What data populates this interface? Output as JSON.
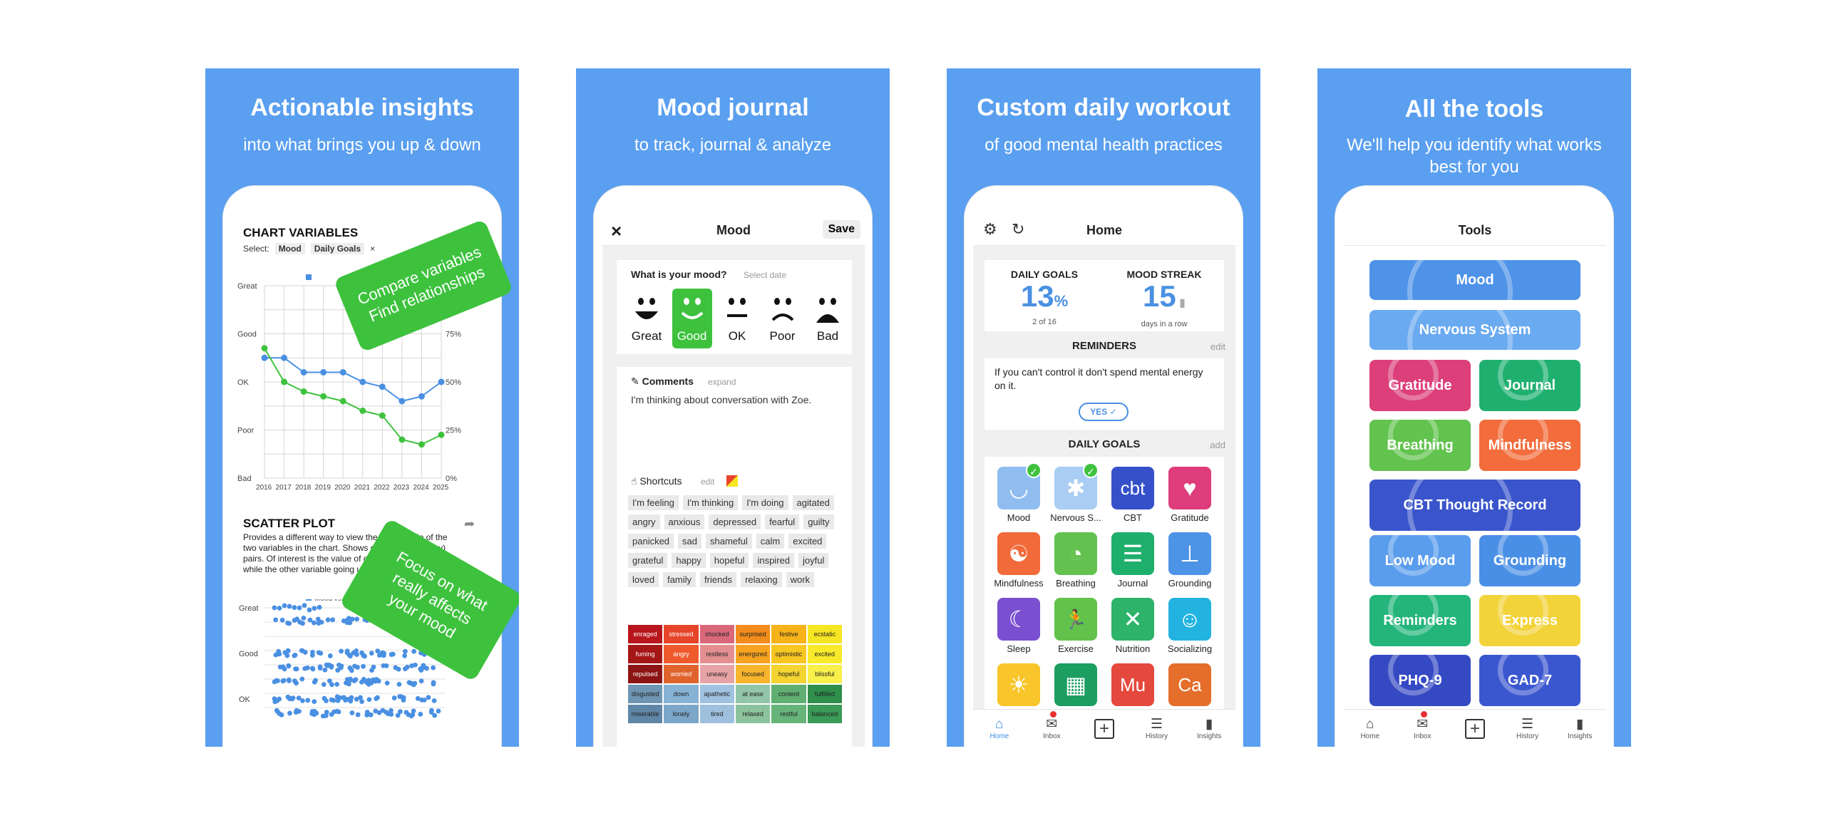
{
  "panels": [
    {
      "title": "Actionable insights",
      "subtitle": "into what brings you up & down"
    },
    {
      "title": "Mood journal",
      "subtitle": "to track, journal & analyze"
    },
    {
      "title": "Custom daily workout",
      "subtitle": "of good mental health practices"
    },
    {
      "title": "All the tools",
      "subtitle": "We'll help you identify what works best for you"
    }
  ],
  "insights": {
    "chart_title": "CHART VARIABLES",
    "select_label": "Select:",
    "chips": [
      "Mood",
      "Daily Goals"
    ],
    "chip_close": "×",
    "overlay1": "Compare variables\nFind relationships",
    "overlay2": "Focus on what\nreally affects\nyour mood",
    "scatter_title": "SCATTER PLOT",
    "scatter_desc": "Provides a different way to view the relationship of the two variables in the chart. Shows data plotted as (x,y) pairs. Of interest is the value of one variable going up while the other variable going up or down.",
    "scatter_legend": "Mood vs. Daily Goals",
    "scatter_y": [
      "Great",
      "Good",
      "OK"
    ]
  },
  "chart_data": {
    "type": "line",
    "title": "CHART VARIABLES",
    "x": [
      "2016",
      "2017",
      "2018",
      "2019",
      "2020",
      "2021",
      "2022",
      "2023",
      "2024",
      "2025"
    ],
    "y_left_ticks": [
      "Great",
      "Good",
      "OK",
      "Poor",
      "Bad"
    ],
    "y_right_ticks": [
      "75%",
      "50%",
      "25%",
      "0%"
    ],
    "series": [
      {
        "name": "Mood",
        "color": "#4a90e2",
        "values": [
          2.5,
          2.5,
          2.2,
          2.2,
          2.2,
          2.0,
          1.9,
          1.6,
          1.7,
          2.0
        ]
      },
      {
        "name": "Daily Goals",
        "color": "#3ec23e",
        "values": [
          2.7,
          2.0,
          1.8,
          1.7,
          1.6,
          1.4,
          1.3,
          0.8,
          0.7,
          0.9
        ]
      }
    ],
    "ylim": [
      0,
      4
    ]
  },
  "journal": {
    "close_icon": "×",
    "title": "Mood",
    "save": "Save",
    "question": "What is your mood?",
    "select_date": "Select date",
    "moods": [
      {
        "label": "Great",
        "face": "great"
      },
      {
        "label": "Good",
        "face": "good"
      },
      {
        "label": "OK",
        "face": "ok"
      },
      {
        "label": "Poor",
        "face": "poor"
      },
      {
        "label": "Bad",
        "face": "bad"
      }
    ],
    "comments_label": "Comments",
    "expand": "expand",
    "comment_text": "I'm thinking about conversation with Zoe.",
    "shortcuts_label": "Shortcuts",
    "edit": "edit",
    "tags": [
      "I'm feeling",
      "I'm thinking",
      "I'm doing",
      "agitated",
      "angry",
      "anxious",
      "depressed",
      "fearful",
      "guilty",
      "panicked",
      "sad",
      "shameful",
      "calm",
      "excited",
      "grateful",
      "happy",
      "hopeful",
      "inspired",
      "joyful",
      "loved",
      "family",
      "friends",
      "relaxing",
      "work"
    ],
    "grid": [
      [
        "enraged",
        "stressed",
        "shocked",
        "surprised",
        "festive",
        "ecstatic"
      ],
      [
        "fuming",
        "angry",
        "restless",
        "energized",
        "optimistic",
        "excited"
      ],
      [
        "repulsed",
        "worried",
        "uneasy",
        "focused",
        "hopeful",
        "blissful"
      ],
      [
        "disgusted",
        "down",
        "apathetic",
        "at ease",
        "content",
        "fulfilled"
      ],
      [
        "miserable",
        "lonely",
        "tired",
        "relaxed",
        "restful",
        "balanced"
      ]
    ],
    "grid_colors": [
      [
        "#b8161c",
        "#e6452a",
        "#d9687a",
        "#f28c1c",
        "#f8b31a",
        "#f6e522"
      ],
      [
        "#a51616",
        "#ef5a2c",
        "#e38f91",
        "#f7a31f",
        "#f8c722",
        "#f8ea2a"
      ],
      [
        "#8c1414",
        "#e0632e",
        "#e6a3a5",
        "#f7b52c",
        "#f4d431",
        "#f8ef49"
      ],
      [
        "#6e95b2",
        "#86b2d4",
        "#9fc2e0",
        "#93c6a8",
        "#5fae72",
        "#2f8f4b"
      ],
      [
        "#5f86a6",
        "#7ba6c8",
        "#9ec0dd",
        "#8cc39c",
        "#67b47a",
        "#3a9a57"
      ]
    ]
  },
  "home": {
    "title": "Home",
    "daily_goals_label": "DAILY GOALS",
    "daily_goals_value": "13",
    "daily_goals_unit": "%",
    "daily_goals_sub": "2 of 16",
    "streak_label": "MOOD STREAK",
    "streak_value": "15",
    "streak_sub": "days in a row",
    "reminders_label": "REMINDERS",
    "reminders_edit": "edit",
    "reminder_text": "If you can't control it don't spend mental energy on it.",
    "yes": "YES",
    "goals_label": "DAILY GOALS",
    "goals_add": "add",
    "goals": [
      {
        "label": "Mood",
        "color": "#8fbdf0",
        "glyph": "◡",
        "checked": true
      },
      {
        "label": "Nervous S...",
        "color": "#a9cdf3",
        "glyph": "✱",
        "checked": true
      },
      {
        "label": "CBT",
        "color": "#3550c9",
        "glyph": "cbt",
        "checked": false
      },
      {
        "label": "Gratitude",
        "color": "#de3c7b",
        "glyph": "♥",
        "checked": false
      },
      {
        "label": "Mindfulness",
        "color": "#f26a3a",
        "glyph": "☯",
        "checked": false
      },
      {
        "label": "Breathing",
        "color": "#63c24f",
        "glyph": "◔",
        "checked": false
      },
      {
        "label": "Journal",
        "color": "#1faf6c",
        "glyph": "☰",
        "checked": false
      },
      {
        "label": "Grounding",
        "color": "#4d93e6",
        "glyph": "⊥",
        "checked": false
      },
      {
        "label": "Sleep",
        "color": "#7a4fd0",
        "glyph": "☾",
        "checked": false
      },
      {
        "label": "Exercise",
        "color": "#62c24b",
        "glyph": "🏃",
        "checked": false
      },
      {
        "label": "Nutrition",
        "color": "#2db36a",
        "glyph": "✕",
        "checked": false
      },
      {
        "label": "Socializing",
        "color": "#22b3e0",
        "glyph": "☺",
        "checked": false
      },
      {
        "label": "",
        "color": "#f8c52a",
        "glyph": "☀",
        "checked": false
      },
      {
        "label": "",
        "color": "#1c9e62",
        "glyph": "▦",
        "checked": false
      },
      {
        "label": "",
        "color": "#e5483d",
        "glyph": "Mu",
        "checked": false
      },
      {
        "label": "",
        "color": "#e56e2a",
        "glyph": "Ca",
        "checked": false
      }
    ]
  },
  "tools": {
    "title": "Tools",
    "items": [
      {
        "label": "Mood",
        "color": "#4e93e8",
        "wide": true
      },
      {
        "label": "Nervous System",
        "color": "#6aaaf0",
        "wide": true
      },
      {
        "label": "Gratitude",
        "color": "#dc3f7a",
        "wide": false
      },
      {
        "label": "Journal",
        "color": "#1fb070",
        "wide": false
      },
      {
        "label": "Breathing",
        "color": "#62c34e",
        "wide": false
      },
      {
        "label": "Mindfulness",
        "color": "#f26c3c",
        "wide": false
      },
      {
        "label": "CBT Thought Record",
        "color": "#3a55cc",
        "wide": true
      },
      {
        "label": "Low Mood",
        "color": "#5a9ded",
        "wide": false
      },
      {
        "label": "Grounding",
        "color": "#4a8fe6",
        "wide": false
      },
      {
        "label": "Reminders",
        "color": "#23b57a",
        "wide": false
      },
      {
        "label": "Express Yourself",
        "color": "#f3d33a",
        "wide": false
      },
      {
        "label": "PHQ-9",
        "color": "#3549c3",
        "wide": false
      },
      {
        "label": "GAD-7",
        "color": "#3b57d0",
        "wide": false
      }
    ]
  },
  "tabbar": [
    {
      "label": "Home",
      "icon": "home-icon",
      "glyph": "⌂"
    },
    {
      "label": "Inbox",
      "icon": "inbox-icon",
      "glyph": "✉"
    },
    {
      "label": "",
      "icon": "add-icon",
      "glyph": "+"
    },
    {
      "label": "History",
      "icon": "history-icon",
      "glyph": "☰"
    },
    {
      "label": "Insights",
      "icon": "insights-icon",
      "glyph": "▮"
    }
  ]
}
